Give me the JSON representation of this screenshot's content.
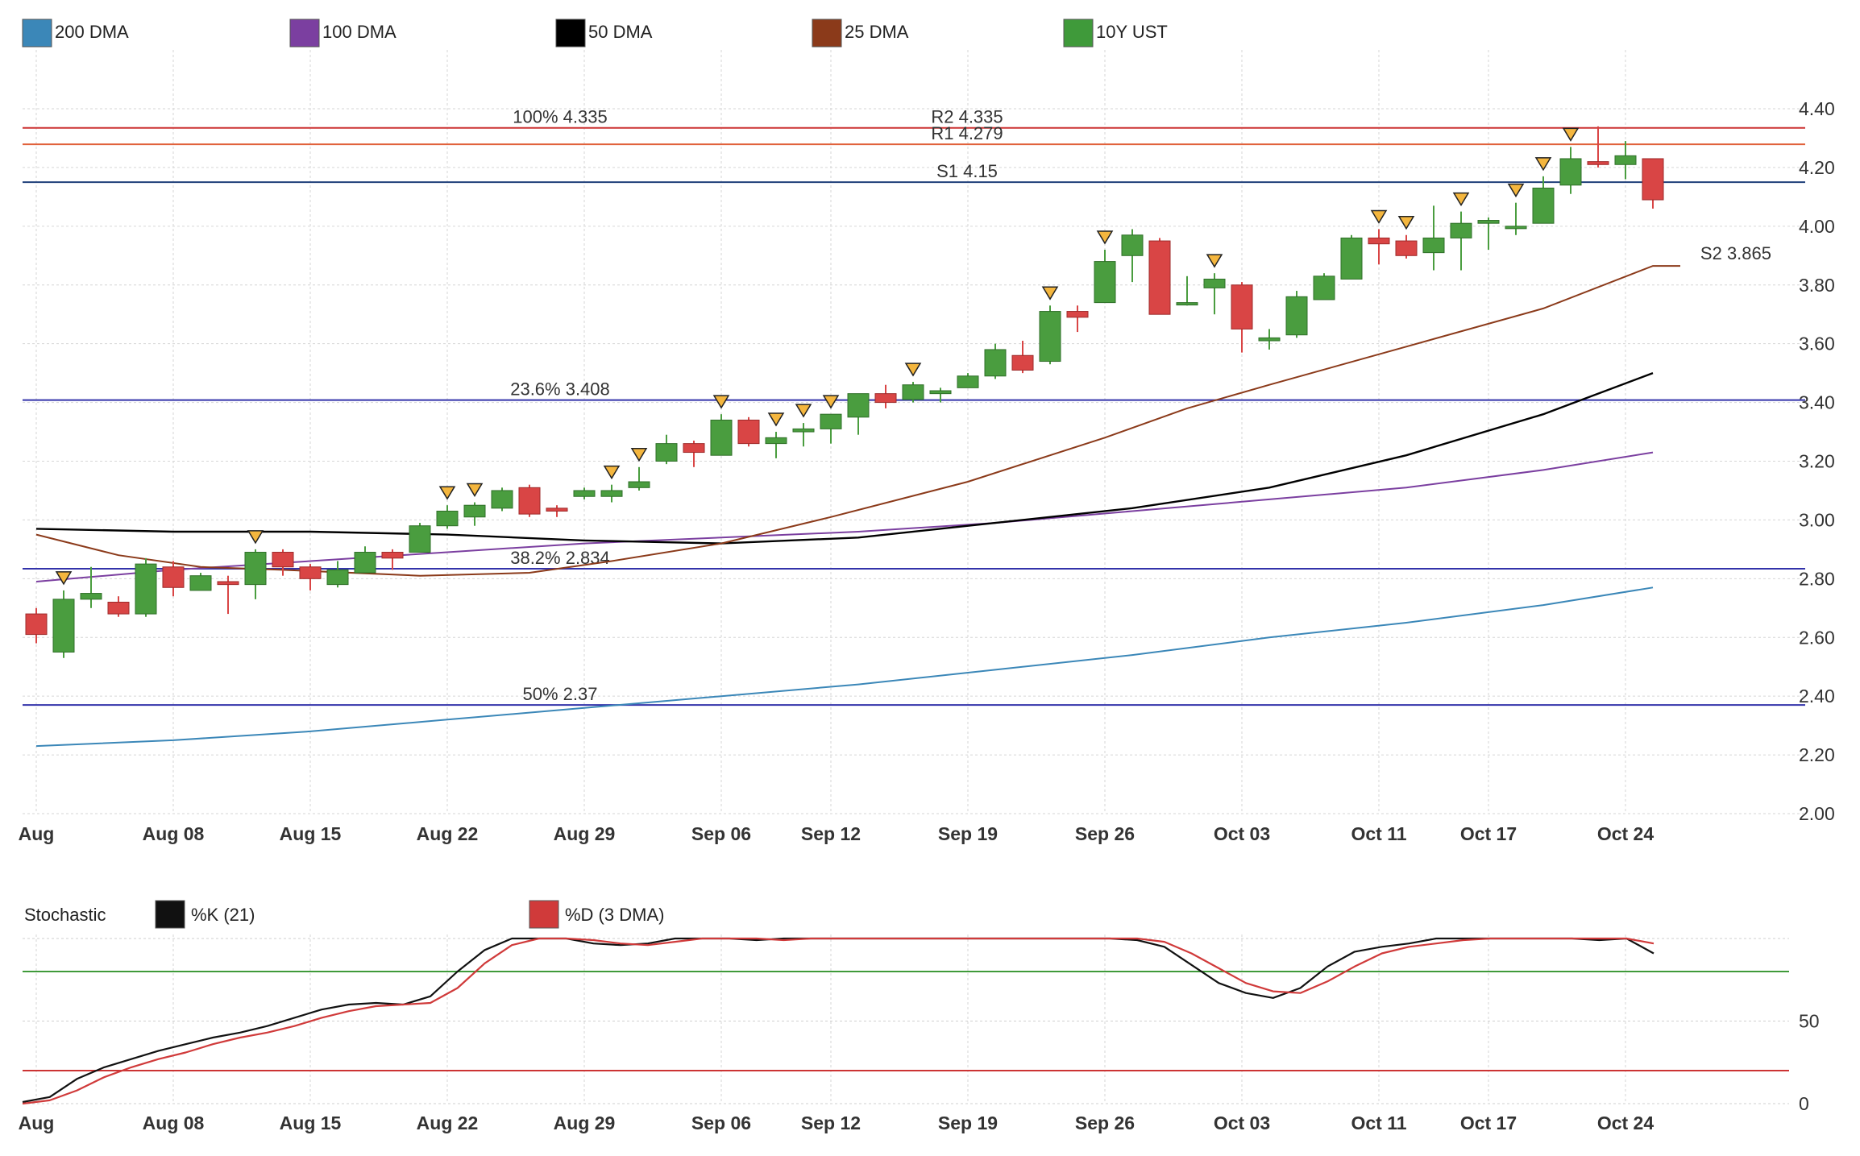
{
  "chart_data": [
    {
      "type": "candlestick",
      "legend": [
        {
          "label": "200 DMA",
          "color": "#3b87b8"
        },
        {
          "label": "100 DMA",
          "color": "#7b3fa0"
        },
        {
          "label": "50 DMA",
          "color": "#000000"
        },
        {
          "label": "25 DMA",
          "color": "#8b3a1a"
        },
        {
          "label": "10Y UST",
          "color": "#3f9a3a"
        }
      ],
      "ylim": [
        2.0,
        4.5
      ],
      "yticks": [
        "4.40",
        "4.20",
        "4.00",
        "3.80",
        "3.60",
        "3.40",
        "3.20",
        "3.00",
        "2.80",
        "2.60",
        "2.40",
        "2.20",
        "2.00"
      ],
      "xticks": [
        {
          "label": "Aug",
          "index": 0
        },
        {
          "label": "Aug 08",
          "index": 5
        },
        {
          "label": "Aug 15",
          "index": 10
        },
        {
          "label": "Aug 22",
          "index": 15
        },
        {
          "label": "Aug 29",
          "index": 20
        },
        {
          "label": "Sep 06",
          "index": 25
        },
        {
          "label": "Sep 12",
          "index": 29
        },
        {
          "label": "Sep 19",
          "index": 34
        },
        {
          "label": "Sep 26",
          "index": 39
        },
        {
          "label": "Oct 03",
          "index": 44
        },
        {
          "label": "Oct 11",
          "index": 49
        },
        {
          "label": "Oct 17",
          "index": 53
        },
        {
          "label": "Oct 24",
          "index": 58
        }
      ],
      "levels": [
        {
          "label": "100% 4.335",
          "value": 4.335,
          "color": "#cc3333",
          "label_x": 20
        },
        {
          "label": "R2 4.335",
          "value": 4.335,
          "color": "#cc3333",
          "label_x": 34
        },
        {
          "label": "R1 4.279",
          "value": 4.279,
          "color": "#e0603a",
          "label_x": 34
        },
        {
          "label": "S1 4.15",
          "value": 4.15,
          "color": "#1f3f7a",
          "label_x": 34
        },
        {
          "label": "23.6% 3.408",
          "value": 3.408,
          "color": "#3333aa",
          "label_x": 20
        },
        {
          "label": "38.2% 2.834",
          "value": 2.834,
          "color": "#3333aa",
          "label_x": 20
        },
        {
          "label": "50% 2.37",
          "value": 2.37,
          "color": "#3333aa",
          "label_x": 20
        }
      ],
      "s2_label": "S2 3.865",
      "s2_value": 3.865,
      "candles": [
        {
          "o": 2.68,
          "h": 2.7,
          "l": 2.58,
          "c": 2.61
        },
        {
          "o": 2.55,
          "h": 2.76,
          "l": 2.53,
          "c": 2.73
        },
        {
          "o": 2.73,
          "h": 2.84,
          "l": 2.7,
          "c": 2.75
        },
        {
          "o": 2.72,
          "h": 2.74,
          "l": 2.67,
          "c": 2.68
        },
        {
          "o": 2.68,
          "h": 2.87,
          "l": 2.67,
          "c": 2.85
        },
        {
          "o": 2.84,
          "h": 2.86,
          "l": 2.74,
          "c": 2.77
        },
        {
          "o": 2.76,
          "h": 2.82,
          "l": 2.76,
          "c": 2.81
        },
        {
          "o": 2.79,
          "h": 2.81,
          "l": 2.68,
          "c": 2.78
        },
        {
          "o": 2.78,
          "h": 2.9,
          "l": 2.73,
          "c": 2.89
        },
        {
          "o": 2.89,
          "h": 2.9,
          "l": 2.81,
          "c": 2.84
        },
        {
          "o": 2.84,
          "h": 2.85,
          "l": 2.76,
          "c": 2.8
        },
        {
          "o": 2.78,
          "h": 2.86,
          "l": 2.77,
          "c": 2.83
        },
        {
          "o": 2.82,
          "h": 2.91,
          "l": 2.82,
          "c": 2.89
        },
        {
          "o": 2.89,
          "h": 2.9,
          "l": 2.83,
          "c": 2.87
        },
        {
          "o": 2.89,
          "h": 2.99,
          "l": 2.89,
          "c": 2.98
        },
        {
          "o": 2.98,
          "h": 3.05,
          "l": 2.97,
          "c": 3.03
        },
        {
          "o": 3.01,
          "h": 3.06,
          "l": 2.98,
          "c": 3.05
        },
        {
          "o": 3.04,
          "h": 3.11,
          "l": 3.03,
          "c": 3.1
        },
        {
          "o": 3.11,
          "h": 3.12,
          "l": 3.01,
          "c": 3.02
        },
        {
          "o": 3.04,
          "h": 3.05,
          "l": 3.01,
          "c": 3.03
        },
        {
          "o": 3.08,
          "h": 3.11,
          "l": 3.07,
          "c": 3.1
        },
        {
          "o": 3.08,
          "h": 3.12,
          "l": 3.06,
          "c": 3.1
        },
        {
          "o": 3.11,
          "h": 3.18,
          "l": 3.1,
          "c": 3.13
        },
        {
          "o": 3.2,
          "h": 3.29,
          "l": 3.19,
          "c": 3.26
        },
        {
          "o": 3.26,
          "h": 3.27,
          "l": 3.18,
          "c": 3.23
        },
        {
          "o": 3.22,
          "h": 3.36,
          "l": 3.22,
          "c": 3.34
        },
        {
          "o": 3.34,
          "h": 3.35,
          "l": 3.25,
          "c": 3.26
        },
        {
          "o": 3.26,
          "h": 3.3,
          "l": 3.21,
          "c": 3.28
        },
        {
          "o": 3.3,
          "h": 3.33,
          "l": 3.25,
          "c": 3.31
        },
        {
          "o": 3.31,
          "h": 3.36,
          "l": 3.26,
          "c": 3.36
        },
        {
          "o": 3.35,
          "h": 3.43,
          "l": 3.29,
          "c": 3.43
        },
        {
          "o": 3.43,
          "h": 3.46,
          "l": 3.38,
          "c": 3.4
        },
        {
          "o": 3.41,
          "h": 3.47,
          "l": 3.4,
          "c": 3.46
        },
        {
          "o": 3.43,
          "h": 3.45,
          "l": 3.4,
          "c": 3.44
        },
        {
          "o": 3.45,
          "h": 3.5,
          "l": 3.45,
          "c": 3.49
        },
        {
          "o": 3.49,
          "h": 3.6,
          "l": 3.48,
          "c": 3.58
        },
        {
          "o": 3.56,
          "h": 3.61,
          "l": 3.5,
          "c": 3.51
        },
        {
          "o": 3.54,
          "h": 3.73,
          "l": 3.53,
          "c": 3.71
        },
        {
          "o": 3.71,
          "h": 3.73,
          "l": 3.64,
          "c": 3.69
        },
        {
          "o": 3.74,
          "h": 3.92,
          "l": 3.74,
          "c": 3.88
        },
        {
          "o": 3.9,
          "h": 3.99,
          "l": 3.81,
          "c": 3.97
        },
        {
          "o": 3.95,
          "h": 3.96,
          "l": 3.7,
          "c": 3.7
        },
        {
          "o": 3.74,
          "h": 3.83,
          "l": 3.73,
          "c": 3.74
        },
        {
          "o": 3.79,
          "h": 3.84,
          "l": 3.7,
          "c": 3.82
        },
        {
          "o": 3.8,
          "h": 3.81,
          "l": 3.57,
          "c": 3.65
        },
        {
          "o": 3.61,
          "h": 3.65,
          "l": 3.58,
          "c": 3.62
        },
        {
          "o": 3.63,
          "h": 3.78,
          "l": 3.62,
          "c": 3.76
        },
        {
          "o": 3.75,
          "h": 3.84,
          "l": 3.75,
          "c": 3.83
        },
        {
          "o": 3.82,
          "h": 3.97,
          "l": 3.82,
          "c": 3.96
        },
        {
          "o": 3.96,
          "h": 3.99,
          "l": 3.87,
          "c": 3.94
        },
        {
          "o": 3.95,
          "h": 3.97,
          "l": 3.89,
          "c": 3.9
        },
        {
          "o": 3.91,
          "h": 4.07,
          "l": 3.85,
          "c": 3.96
        },
        {
          "o": 3.96,
          "h": 4.05,
          "l": 3.85,
          "c": 4.01
        },
        {
          "o": 4.01,
          "h": 4.03,
          "l": 3.92,
          "c": 4.02
        },
        {
          "o": 4.0,
          "h": 4.08,
          "l": 3.97,
          "c": 4.0
        },
        {
          "o": 4.01,
          "h": 4.17,
          "l": 4.01,
          "c": 4.13
        },
        {
          "o": 4.14,
          "h": 4.27,
          "l": 4.11,
          "c": 4.23
        },
        {
          "o": 4.22,
          "h": 4.34,
          "l": 4.2,
          "c": 4.21
        },
        {
          "o": 4.21,
          "h": 4.29,
          "l": 4.16,
          "c": 4.24
        },
        {
          "o": 4.23,
          "h": 4.23,
          "l": 4.06,
          "c": 4.09
        }
      ],
      "markers": [
        1,
        8,
        15,
        16,
        21,
        22,
        25,
        27,
        28,
        29,
        32,
        37,
        39,
        43,
        49,
        50,
        52,
        54,
        55,
        56
      ],
      "ma_series": [
        {
          "name": "200 DMA",
          "color": "#3b87b8",
          "points": [
            [
              0,
              2.23
            ],
            [
              5,
              2.25
            ],
            [
              10,
              2.28
            ],
            [
              15,
              2.32
            ],
            [
              20,
              2.36
            ],
            [
              25,
              2.4
            ],
            [
              30,
              2.44
            ],
            [
              35,
              2.49
            ],
            [
              40,
              2.54
            ],
            [
              45,
              2.6
            ],
            [
              50,
              2.65
            ],
            [
              55,
              2.71
            ],
            [
              59,
              2.77
            ]
          ]
        },
        {
          "name": "100 DMA",
          "color": "#7b3fa0",
          "points": [
            [
              0,
              2.79
            ],
            [
              5,
              2.83
            ],
            [
              10,
              2.86
            ],
            [
              15,
              2.89
            ],
            [
              20,
              2.92
            ],
            [
              25,
              2.94
            ],
            [
              30,
              2.96
            ],
            [
              35,
              2.99
            ],
            [
              40,
              3.03
            ],
            [
              45,
              3.07
            ],
            [
              50,
              3.11
            ],
            [
              55,
              3.17
            ],
            [
              59,
              3.23
            ]
          ]
        },
        {
          "name": "50 DMA",
          "color": "#000000",
          "points": [
            [
              0,
              2.97
            ],
            [
              5,
              2.96
            ],
            [
              10,
              2.96
            ],
            [
              15,
              2.95
            ],
            [
              20,
              2.93
            ],
            [
              25,
              2.92
            ],
            [
              30,
              2.94
            ],
            [
              35,
              2.99
            ],
            [
              40,
              3.04
            ],
            [
              45,
              3.11
            ],
            [
              50,
              3.22
            ],
            [
              55,
              3.36
            ],
            [
              59,
              3.5
            ]
          ]
        },
        {
          "name": "25 DMA",
          "color": "#8b3a1a",
          "points": [
            [
              0,
              2.95
            ],
            [
              3,
              2.88
            ],
            [
              6,
              2.84
            ],
            [
              9,
              2.83
            ],
            [
              14,
              2.81
            ],
            [
              18,
              2.82
            ],
            [
              21,
              2.86
            ],
            [
              25,
              2.92
            ],
            [
              29,
              3.01
            ],
            [
              34,
              3.13
            ],
            [
              39,
              3.28
            ],
            [
              42,
              3.38
            ],
            [
              45,
              3.46
            ],
            [
              50,
              3.59
            ],
            [
              55,
              3.72
            ],
            [
              59,
              3.865
            ],
            [
              60,
              3.865
            ]
          ]
        }
      ]
    },
    {
      "type": "line",
      "title": "Stochastic",
      "legend": [
        {
          "label": "%K (21)",
          "color": "#111111"
        },
        {
          "label": "%D (3 DMA)",
          "color": "#d03a3a"
        }
      ],
      "yticks": [
        "50",
        "0"
      ],
      "ylim": [
        0,
        100
      ],
      "upper_band": 80,
      "lower_band": 20,
      "upper_color": "#3f9a3a",
      "lower_color": "#cc3333",
      "series": [
        {
          "name": "%K (21)",
          "color": "#111111",
          "values": [
            1,
            4,
            15,
            22,
            27,
            32,
            36,
            40,
            43,
            47,
            52,
            57,
            60,
            61,
            60,
            65,
            80,
            93,
            100,
            100,
            100,
            97,
            96,
            97,
            100,
            100,
            100,
            99,
            100,
            100,
            100,
            100,
            100,
            100,
            100,
            100,
            100,
            100,
            100,
            100,
            100,
            99,
            95,
            84,
            73,
            67,
            64,
            70,
            83,
            92,
            95,
            97,
            100,
            100,
            100,
            100,
            100,
            100,
            99,
            100,
            91
          ]
        },
        {
          "name": "%D (3 DMA)",
          "color": "#d03a3a",
          "values": [
            0,
            2,
            8,
            16,
            22,
            27,
            31,
            36,
            40,
            43,
            47,
            52,
            56,
            59,
            60,
            61,
            70,
            85,
            96,
            100,
            100,
            99,
            97,
            96,
            98,
            100,
            100,
            100,
            99,
            100,
            100,
            100,
            100,
            100,
            100,
            100,
            100,
            100,
            100,
            100,
            100,
            100,
            98,
            91,
            82,
            73,
            68,
            67,
            74,
            83,
            91,
            95,
            97,
            99,
            100,
            100,
            100,
            100,
            100,
            100,
            97
          ]
        }
      ]
    }
  ]
}
